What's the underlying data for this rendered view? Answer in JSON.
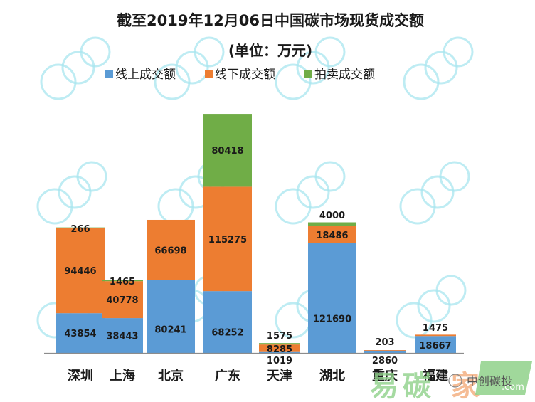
{
  "chart_data": {
    "type": "bar",
    "stacked": true,
    "title": "截至2019年12月06日中国碳市场现货成交额",
    "subtitle": "(单位：万元)",
    "xlabel": "",
    "ylabel": "",
    "grid": false,
    "legend_position": "top",
    "categories": [
      "深圳",
      "上海",
      "北京",
      "广东",
      "天津",
      "湖北",
      "重庆",
      "福建"
    ],
    "series": [
      {
        "name": "线上成交额",
        "color": "#5b9bd5",
        "values": [
          43854,
          38443,
          80241,
          68252,
          1019,
          121690,
          2860,
          18667
        ]
      },
      {
        "name": "线下成交额",
        "color": "#ed7d31",
        "values": [
          94446,
          40778,
          66698,
          115275,
          8285,
          18486,
          203,
          1475
        ]
      },
      {
        "name": "拍卖成交额",
        "color": "#70ad47",
        "values": [
          266,
          1465,
          0,
          80418,
          1575,
          4000,
          0,
          0
        ]
      }
    ],
    "data_labels": [
      [
        "43854",
        "38443",
        "80241",
        "68252",
        "1019",
        "121690",
        "2860",
        "18667"
      ],
      [
        "94446",
        "40778",
        "66698",
        "115275",
        "8285",
        "18486",
        "203",
        "1475"
      ],
      [
        "266",
        "1465",
        "",
        "80418",
        "1575",
        "4000",
        "",
        ""
      ]
    ],
    "ylim": [
      0,
      264000
    ]
  },
  "watermark": {
    "brand_text": "中创碳投",
    "site_text_1": "易",
    "site_text_2": "碳",
    "site_text_3": "家",
    "site_suffix": ".com",
    "colors": {
      "green": "#8fd18a",
      "orange": "#f4b183",
      "cyan": "#a8e6ef"
    }
  }
}
